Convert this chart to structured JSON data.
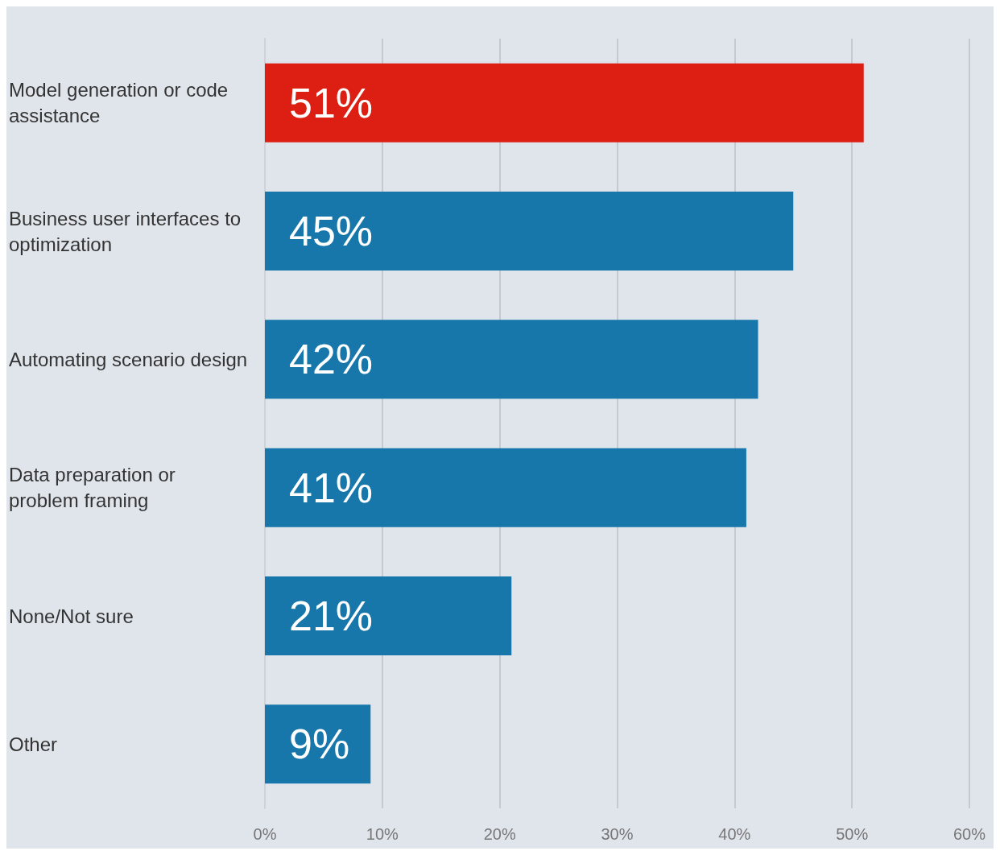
{
  "chart_data": {
    "type": "bar",
    "orientation": "horizontal",
    "categories": [
      "Model generation or code assistance",
      "Business user interfaces to optimization",
      "Automating scenario design",
      "Data preparation or problem framing",
      "None/Not sure",
      "Other"
    ],
    "values": [
      51,
      45,
      42,
      41,
      21,
      9
    ],
    "colors": [
      "#dc1f12",
      "#1777aa",
      "#1777aa",
      "#1777aa",
      "#1777aa",
      "#1777aa"
    ],
    "value_labels": [
      "51%",
      "45%",
      "42%",
      "41%",
      "21%",
      "9%"
    ],
    "xlim": [
      0,
      60
    ],
    "xticks": [
      {
        "value": 0,
        "label": "0%"
      },
      {
        "value": 10,
        "label": "10%"
      },
      {
        "value": 20,
        "label": "20%"
      },
      {
        "value": 30,
        "label": "30%"
      },
      {
        "value": 40,
        "label": "40%"
      },
      {
        "value": 50,
        "label": "50%"
      },
      {
        "value": 60,
        "label": "60%"
      }
    ],
    "grid": "x"
  }
}
